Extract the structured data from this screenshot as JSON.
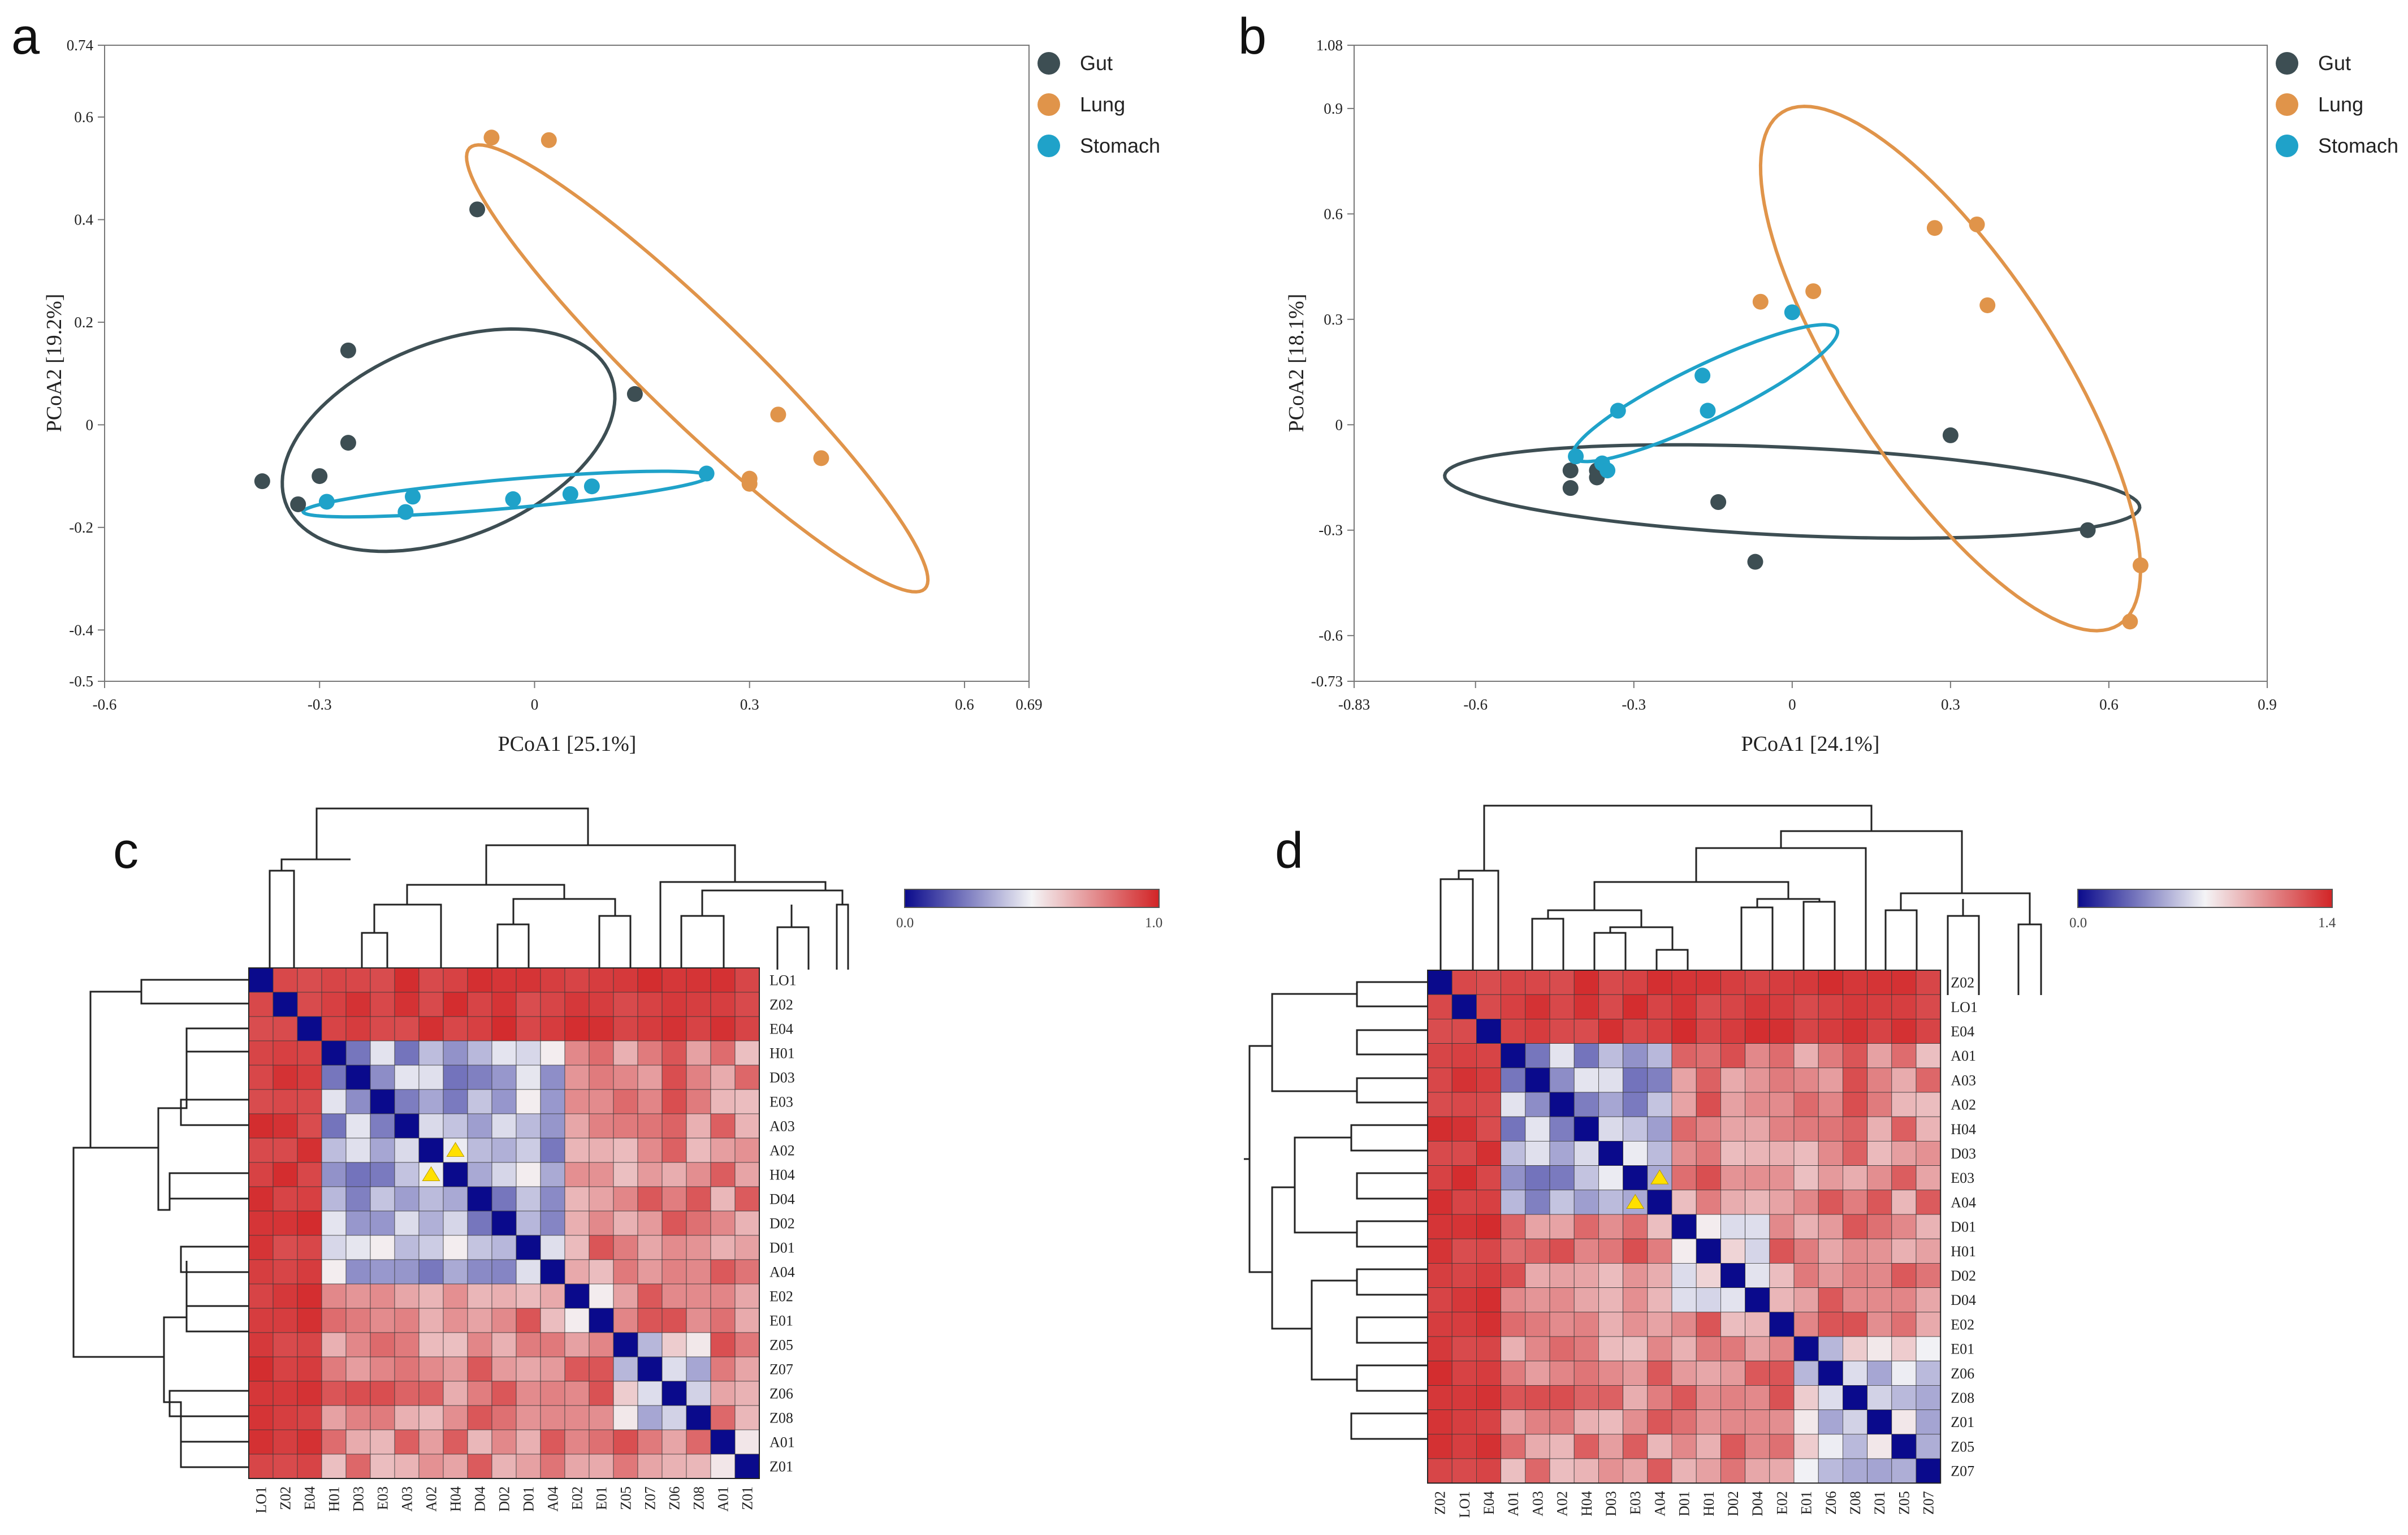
{
  "chart_data": [
    {
      "panel": "a",
      "type": "scatter",
      "xlabel": "PCoA1 [25.1%]",
      "ylabel": "PCoA2 [19.2%]",
      "xlim": [
        -0.6,
        0.69
      ],
      "ylim": [
        -0.5,
        0.74
      ],
      "xticks": [
        "-0.6",
        "-0.3",
        "0",
        "0.3",
        "0.6",
        "0.69"
      ],
      "yticks": [
        "0.74",
        "0.6",
        "0.4",
        "0.2",
        "0",
        "-0.2",
        "-0.4",
        "-0.5"
      ],
      "legend_position": "right",
      "series": [
        {
          "name": "Gut",
          "color": "#3d4e53",
          "x": [
            -0.08,
            -0.26,
            -0.26,
            -0.3,
            -0.38,
            -0.33,
            0.14
          ],
          "y": [
            0.42,
            0.145,
            -0.035,
            -0.1,
            -0.11,
            -0.155,
            0.06
          ],
          "ellipse": {
            "cx": -0.12,
            "cy": -0.03,
            "rx": 0.265,
            "ry": 0.175,
            "angle_deg": 40
          }
        },
        {
          "name": "Lung",
          "color": "#e0944a",
          "x": [
            -0.06,
            0.02,
            0.34,
            0.4,
            0.3,
            0.3
          ],
          "y": [
            0.56,
            0.555,
            0.02,
            -0.065,
            -0.105,
            -0.115
          ],
          "ellipse": {
            "cx": 0.227,
            "cy": 0.11,
            "rx": 0.535,
            "ry": 0.085,
            "angle_deg": -54
          }
        },
        {
          "name": "Stomach",
          "color": "#1fa2c9",
          "x": [
            -0.29,
            -0.18,
            -0.17,
            -0.03,
            0.05,
            0.08,
            0.24
          ],
          "y": [
            -0.15,
            -0.17,
            -0.14,
            -0.145,
            -0.135,
            -0.12,
            -0.095
          ],
          "ellipse": {
            "cx": -0.04,
            "cy": -0.135,
            "rx": 0.285,
            "ry": 0.028,
            "angle_deg": 7
          }
        }
      ]
    },
    {
      "panel": "b",
      "type": "scatter",
      "xlabel": "PCoA1 [24.1%]",
      "ylabel": "PCoA2 [18.1%]",
      "xlim": [
        -0.83,
        0.9
      ],
      "ylim": [
        -0.73,
        1.08
      ],
      "xticks": [
        "-0.83",
        "-0.6",
        "-0.3",
        "0",
        "0.3",
        "0.6",
        "0.9"
      ],
      "yticks": [
        "1.08",
        "0.9",
        "0.6",
        "0.3",
        "0",
        "-0.3",
        "-0.6",
        "-0.73"
      ],
      "legend_position": "right",
      "series": [
        {
          "name": "Gut",
          "color": "#3d4e53",
          "x": [
            -0.42,
            -0.42,
            -0.37,
            -0.37,
            -0.14,
            -0.07,
            0.3,
            0.56
          ],
          "y": [
            -0.13,
            -0.18,
            -0.13,
            -0.15,
            -0.22,
            -0.39,
            -0.03,
            -0.3
          ],
          "ellipse": {
            "cx": 0.0,
            "cy": -0.19,
            "rx": 0.66,
            "ry": 0.125,
            "angle_deg": -4
          }
        },
        {
          "name": "Lung",
          "color": "#e0944a",
          "x": [
            0.27,
            0.35,
            0.37,
            -0.06,
            0.04,
            0.66,
            0.64
          ],
          "y": [
            0.56,
            0.57,
            0.34,
            0.35,
            0.38,
            -0.4,
            -0.56
          ],
          "ellipse": {
            "cx": 0.3,
            "cy": 0.16,
            "rx": 0.8,
            "ry": 0.215,
            "angle_deg": -68
          }
        },
        {
          "name": "Stomach",
          "color": "#1fa2c9",
          "x": [
            -0.41,
            -0.36,
            -0.35,
            -0.33,
            -0.17,
            -0.16,
            0.0
          ],
          "y": [
            -0.09,
            -0.11,
            -0.13,
            0.04,
            0.14,
            0.04,
            0.32
          ],
          "ellipse": {
            "cx": -0.165,
            "cy": 0.09,
            "rx": 0.31,
            "ry": 0.07,
            "angle_deg": 37
          }
        }
      ]
    },
    {
      "panel": "c",
      "type": "heatmap",
      "row_labels": [
        "LO1",
        "Z02",
        "E04",
        "H01",
        "D03",
        "E03",
        "A03",
        "A02",
        "H04",
        "D04",
        "D02",
        "D01",
        "A04",
        "E02",
        "E01",
        "Z05",
        "Z07",
        "Z06",
        "Z08",
        "A01",
        "Z01"
      ],
      "col_labels": [
        "LO1",
        "Z02",
        "E04",
        "H01",
        "D03",
        "E03",
        "A03",
        "A02",
        "H04",
        "D04",
        "D02",
        "D01",
        "A04",
        "E02",
        "E01",
        "Z05",
        "Z07",
        "Z06",
        "Z08",
        "A01",
        "Z01"
      ],
      "groups": [
        [
          0,
          0,
          1
        ],
        [
          1,
          2,
          1
        ],
        [
          3,
          12,
          0
        ],
        [
          13,
          14,
          2
        ],
        [
          15,
          18,
          3
        ],
        [
          19,
          20,
          4
        ]
      ],
      "color_scale": {
        "min": "0.0",
        "max": "1.0",
        "low": "#0a0a8c",
        "mid": "#f4f4f6",
        "high": "#d22426",
        "max_value": 1.0
      },
      "markers": [
        [
          7,
          8
        ],
        [
          8,
          7
        ]
      ]
    },
    {
      "panel": "d",
      "type": "heatmap",
      "row_labels": [
        "Z02",
        "LO1",
        "E04",
        "A01",
        "A03",
        "A02",
        "H04",
        "D03",
        "E03",
        "A04",
        "D01",
        "H01",
        "D02",
        "D04",
        "E02",
        "E01",
        "Z06",
        "Z08",
        "Z01",
        "Z05",
        "Z07"
      ],
      "col_labels": [
        "Z02",
        "LO1",
        "E04",
        "A01",
        "A03",
        "A02",
        "H04",
        "D03",
        "E03",
        "A04",
        "D01",
        "H01",
        "D02",
        "D04",
        "E02",
        "E01",
        "Z06",
        "Z08",
        "Z01",
        "Z05",
        "Z07"
      ],
      "groups": [
        [
          0,
          0,
          1
        ],
        [
          1,
          2,
          1
        ],
        [
          3,
          9,
          0
        ],
        [
          10,
          13,
          0.5
        ],
        [
          14,
          14,
          2
        ],
        [
          15,
          20,
          3
        ]
      ],
      "color_scale": {
        "min": "0.0",
        "max": "1.4",
        "low": "#0a0a8c",
        "mid": "#f4f4f6",
        "high": "#d22426",
        "max_value": 1.4
      },
      "markers": [
        [
          8,
          9
        ],
        [
          9,
          8
        ]
      ]
    }
  ]
}
